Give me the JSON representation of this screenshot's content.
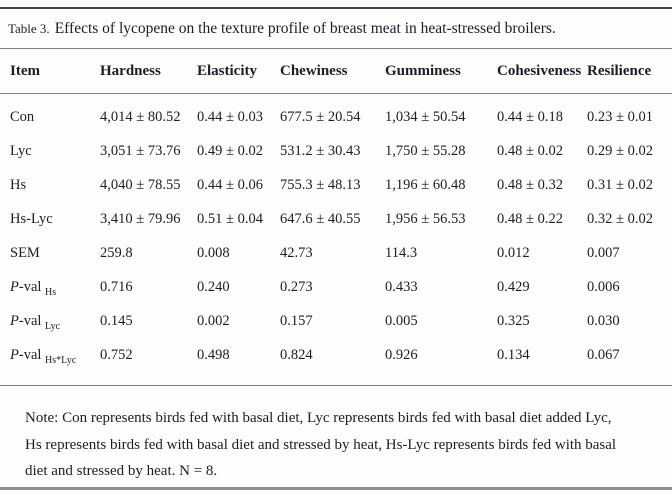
{
  "table": {
    "title_label": "Table 3.",
    "title_text": "Effects of lycopene on the texture profile of breast meat in heat-stressed broilers.",
    "columns": [
      "Item",
      "Hardness",
      "Elasticity",
      "Chewiness",
      "Gumminess",
      "Cohesiveness",
      "Resilience"
    ],
    "rows": [
      {
        "item_parts": [
          {
            "t": "Con"
          }
        ],
        "values": [
          "4,014 ± 80.52",
          "0.44 ± 0.03",
          "677.5 ± 20.54",
          "1,034 ± 50.54",
          "0.44 ± 0.18",
          "0.23 ± 0.01"
        ]
      },
      {
        "item_parts": [
          {
            "t": "Lyc"
          }
        ],
        "values": [
          "3,051 ± 73.76",
          "0.49 ± 0.02",
          "531.2 ± 30.43",
          "1,750 ± 55.28",
          "0.48 ± 0.02",
          "0.29 ± 0.02"
        ]
      },
      {
        "item_parts": [
          {
            "t": "Hs"
          }
        ],
        "values": [
          "4,040 ± 78.55",
          "0.44 ± 0.06",
          "755.3 ± 48.13",
          "1,196 ± 60.48",
          "0.48 ± 0.32",
          "0.31 ± 0.02"
        ]
      },
      {
        "item_parts": [
          {
            "t": "Hs-Lyc"
          }
        ],
        "values": [
          "3,410 ± 79.96",
          "0.51 ± 0.04",
          "647.6 ± 40.55",
          "1,956 ± 56.53",
          "0.48 ± 0.22",
          "0.32 ± 0.02"
        ]
      },
      {
        "item_parts": [
          {
            "t": "SEM"
          }
        ],
        "values": [
          "259.8",
          "0.008",
          "42.73",
          "114.3",
          "0.012",
          "0.007"
        ]
      },
      {
        "item_parts": [
          {
            "t": "P",
            "style": "i"
          },
          {
            "t": "-val "
          },
          {
            "t": "Hs",
            "style": "sub"
          }
        ],
        "values": [
          "0.716",
          "0.240",
          "0.273",
          "0.433",
          "0.429",
          "0.006"
        ]
      },
      {
        "item_parts": [
          {
            "t": "P",
            "style": "i"
          },
          {
            "t": "-val "
          },
          {
            "t": "Lyc",
            "style": "sub"
          }
        ],
        "values": [
          "0.145",
          "0.002",
          "0.157",
          "0.005",
          "0.325",
          "0.030"
        ]
      },
      {
        "item_parts": [
          {
            "t": "P",
            "style": "i"
          },
          {
            "t": "-val "
          },
          {
            "t": "Hs*Lyc",
            "style": "sub"
          }
        ],
        "values": [
          "0.752",
          "0.498",
          "0.824",
          "0.926",
          "0.134",
          "0.067"
        ]
      }
    ],
    "note_lines": [
      "Note: Con represents birds fed with basal diet, Lyc represents birds fed with basal diet added Lyc,",
      "Hs represents birds fed with basal diet and stressed by heat, Hs-Lyc represents birds fed with basal",
      "diet and stressed by heat. N = 8."
    ]
  }
}
